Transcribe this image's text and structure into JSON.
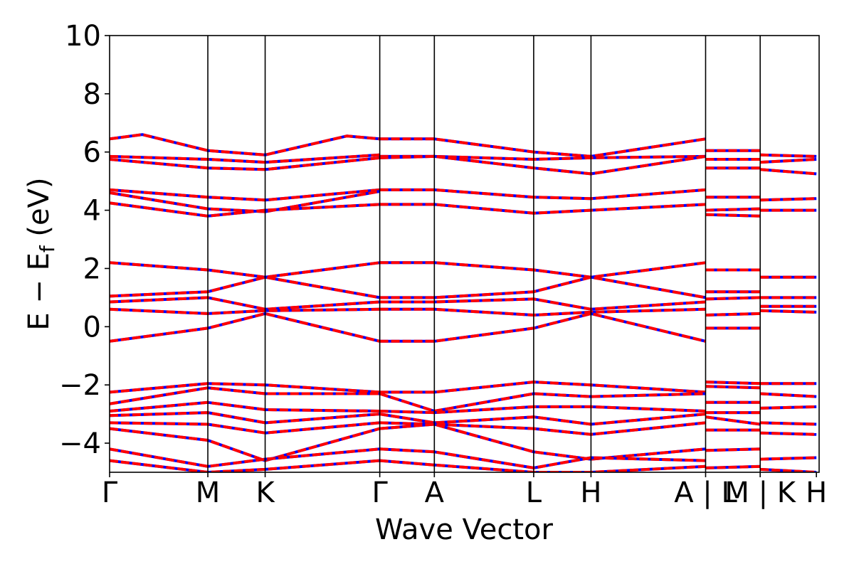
{
  "chart_data": {
    "type": "line",
    "title": "",
    "xlabel": "Wave Vector",
    "ylabel": "E − E",
    "ylabel_subscript": "f",
    "ylabel_unit": " (eV)",
    "ylim": [
      -5,
      10
    ],
    "yticks": [
      -4,
      -2,
      0,
      2,
      4,
      6,
      8,
      10
    ],
    "ytick_labels": [
      "−4",
      "−2",
      "0",
      "2",
      "4",
      "6",
      "8",
      "10"
    ],
    "xlim": [
      0,
      13.0
    ],
    "kpath_ticks": [
      {
        "x": 0.0,
        "label": "Γ"
      },
      {
        "x": 1.8,
        "label": "M"
      },
      {
        "x": 2.85,
        "label": "K"
      },
      {
        "x": 4.95,
        "label": "Γ"
      },
      {
        "x": 5.95,
        "label": "A"
      },
      {
        "x": 7.77,
        "label": "L"
      },
      {
        "x": 8.82,
        "label": "H"
      },
      {
        "x": 10.92,
        "label": "A | L"
      },
      {
        "x": 11.92,
        "label": "M | K"
      },
      {
        "x": 12.95,
        "label": "H"
      }
    ],
    "band_colors": {
      "spin_up": "#0000ff",
      "spin_down": "#ff0000"
    },
    "grid": false,
    "legend": "none",
    "series": [
      {
        "segment": "Γ-M-K-Γ",
        "values": {
          "x": [
            0.0,
            0.6,
            1.8,
            2.85,
            4.35,
            4.95
          ],
          "y": [
            6.45,
            6.6,
            6.05,
            5.9,
            6.55,
            6.45
          ]
        }
      },
      {
        "segment": "Γ-M-K-Γ",
        "values": {
          "x": [
            0.0,
            1.8,
            2.85,
            4.95
          ],
          "y": [
            5.85,
            5.75,
            5.65,
            5.9
          ]
        }
      },
      {
        "segment": "Γ-M-K-Γ",
        "values": {
          "x": [
            0.0,
            1.8,
            2.85,
            4.95
          ],
          "y": [
            5.75,
            5.45,
            5.4,
            5.8
          ]
        }
      },
      {
        "segment": "Γ-M-K-Γ",
        "values": {
          "x": [
            0.0,
            1.8,
            2.85,
            4.95
          ],
          "y": [
            4.7,
            4.45,
            4.35,
            4.7
          ]
        }
      },
      {
        "segment": "Γ-M-K-Γ",
        "values": {
          "x": [
            0.0,
            1.8,
            2.85,
            4.95
          ],
          "y": [
            4.6,
            4.05,
            3.95,
            4.65
          ]
        }
      },
      {
        "segment": "Γ-M-K-Γ",
        "values": {
          "x": [
            0.0,
            1.8,
            2.85,
            4.95
          ],
          "y": [
            4.25,
            3.8,
            4.0,
            4.2
          ]
        }
      },
      {
        "segment": "Γ-M-K-Γ",
        "values": {
          "x": [
            0.0,
            1.8,
            2.85,
            4.95
          ],
          "y": [
            2.2,
            1.95,
            1.7,
            2.2
          ]
        }
      },
      {
        "segment": "Γ-M-K-Γ",
        "values": {
          "x": [
            0.0,
            1.8,
            2.85,
            4.95
          ],
          "y": [
            1.05,
            1.2,
            1.7,
            1.0
          ]
        }
      },
      {
        "segment": "Γ-M-K-Γ",
        "values": {
          "x": [
            0.0,
            1.8,
            2.85,
            4.95
          ],
          "y": [
            0.85,
            1.0,
            0.6,
            0.85
          ]
        }
      },
      {
        "segment": "Γ-M-K-Γ",
        "values": {
          "x": [
            0.0,
            1.8,
            2.85,
            4.95
          ],
          "y": [
            0.6,
            0.45,
            0.55,
            0.6
          ]
        }
      },
      {
        "segment": "Γ-M-K-Γ",
        "values": {
          "x": [
            0.0,
            1.8,
            2.85,
            4.95
          ],
          "y": [
            -0.5,
            -0.05,
            0.45,
            -0.5
          ]
        }
      },
      {
        "segment": "Γ-M-K-Γ",
        "values": {
          "x": [
            0.0,
            1.8,
            2.85,
            4.95
          ],
          "y": [
            -2.25,
            -1.95,
            -2.0,
            -2.25
          ]
        }
      },
      {
        "segment": "Γ-M-K-Γ",
        "values": {
          "x": [
            0.0,
            1.8,
            2.85,
            4.95
          ],
          "y": [
            -2.65,
            -2.1,
            -2.3,
            -2.3
          ]
        }
      },
      {
        "segment": "Γ-M-K-Γ",
        "values": {
          "x": [
            0.0,
            1.8,
            2.85,
            4.95
          ],
          "y": [
            -2.9,
            -2.6,
            -2.85,
            -2.9
          ]
        }
      },
      {
        "segment": "Γ-M-K-Γ",
        "values": {
          "x": [
            0.0,
            1.8,
            2.85,
            4.95
          ],
          "y": [
            -3.05,
            -2.95,
            -3.3,
            -3.0
          ]
        }
      },
      {
        "segment": "Γ-M-K-Γ",
        "values": {
          "x": [
            0.0,
            1.8,
            2.85,
            4.95
          ],
          "y": [
            -3.3,
            -3.35,
            -3.65,
            -3.3
          ]
        }
      },
      {
        "segment": "Γ-M-K-Γ",
        "values": {
          "x": [
            0.0,
            1.8,
            2.85,
            4.95
          ],
          "y": [
            -3.5,
            -3.9,
            -4.6,
            -3.5
          ]
        }
      },
      {
        "segment": "Γ-M-K-Γ",
        "values": {
          "x": [
            0.0,
            1.8,
            2.85,
            4.95
          ],
          "y": [
            -4.2,
            -4.8,
            -4.55,
            -4.2
          ]
        }
      },
      {
        "segment": "Γ-M-K-Γ",
        "values": {
          "x": [
            0.0,
            1.8,
            2.85,
            4.95
          ],
          "y": [
            -4.6,
            -5.0,
            -4.9,
            -4.6
          ]
        }
      },
      {
        "segment": "Γ-A-L-H-A",
        "values": {
          "x": [
            4.95,
            5.95,
            7.77,
            8.82,
            10.92
          ],
          "y": [
            6.45,
            6.45,
            6.0,
            5.85,
            6.45
          ]
        }
      },
      {
        "segment": "Γ-A-L-H-A",
        "values": {
          "x": [
            4.95,
            5.95,
            7.77,
            8.82,
            10.92
          ],
          "y": [
            5.85,
            5.85,
            5.75,
            5.8,
            5.85
          ]
        }
      },
      {
        "segment": "Γ-A-L-H-A",
        "values": {
          "x": [
            4.95,
            5.95,
            7.77,
            8.82,
            10.92
          ],
          "y": [
            5.8,
            5.85,
            5.45,
            5.25,
            5.85
          ]
        }
      },
      {
        "segment": "Γ-A-L-H-A",
        "values": {
          "x": [
            4.95,
            5.95,
            7.77,
            8.82,
            10.92
          ],
          "y": [
            4.7,
            4.7,
            4.45,
            4.4,
            4.7
          ]
        }
      },
      {
        "segment": "Γ-A-L-H-A",
        "values": {
          "x": [
            4.95,
            5.95,
            7.77,
            8.82,
            10.92
          ],
          "y": [
            4.2,
            4.2,
            3.9,
            4.0,
            4.2
          ]
        }
      },
      {
        "segment": "Γ-A-L-H-A",
        "values": {
          "x": [
            4.95,
            5.95,
            7.77,
            8.82,
            10.92
          ],
          "y": [
            2.2,
            2.2,
            1.95,
            1.7,
            2.2
          ]
        }
      },
      {
        "segment": "Γ-A-L-H-A",
        "values": {
          "x": [
            4.95,
            5.95,
            7.77,
            8.82,
            10.92
          ],
          "y": [
            1.0,
            1.0,
            1.2,
            1.7,
            1.0
          ]
        }
      },
      {
        "segment": "Γ-A-L-H-A",
        "values": {
          "x": [
            4.95,
            5.95,
            7.77,
            8.82,
            10.92
          ],
          "y": [
            0.85,
            0.85,
            0.95,
            0.6,
            0.85
          ]
        }
      },
      {
        "segment": "Γ-A-L-H-A",
        "values": {
          "x": [
            4.95,
            5.95,
            7.77,
            8.82,
            10.92
          ],
          "y": [
            0.6,
            0.6,
            0.4,
            0.5,
            0.6
          ]
        }
      },
      {
        "segment": "Γ-A-L-H-A",
        "values": {
          "x": [
            4.95,
            5.95,
            7.77,
            8.82,
            10.92
          ],
          "y": [
            -0.5,
            -0.5,
            -0.05,
            0.45,
            -0.5
          ]
        }
      },
      {
        "segment": "Γ-A-L-H-A",
        "values": {
          "x": [
            4.95,
            5.95,
            7.77,
            8.82,
            10.92
          ],
          "y": [
            -2.25,
            -2.25,
            -1.9,
            -2.0,
            -2.25
          ]
        }
      },
      {
        "segment": "Γ-A-L-H-A",
        "values": {
          "x": [
            4.95,
            5.95,
            7.77,
            8.82,
            10.92
          ],
          "y": [
            -2.3,
            -2.9,
            -2.3,
            -2.4,
            -2.3
          ]
        }
      },
      {
        "segment": "Γ-A-L-H-A",
        "values": {
          "x": [
            4.95,
            5.95,
            7.77,
            8.82,
            10.92
          ],
          "y": [
            -2.9,
            -2.95,
            -2.75,
            -2.75,
            -2.9
          ]
        }
      },
      {
        "segment": "Γ-A-L-H-A",
        "values": {
          "x": [
            4.95,
            5.95,
            7.77,
            8.82,
            10.92
          ],
          "y": [
            -3.0,
            -3.3,
            -3.1,
            -3.35,
            -3.0
          ]
        }
      },
      {
        "segment": "Γ-A-L-H-A",
        "values": {
          "x": [
            4.95,
            5.95,
            7.77,
            8.82,
            10.92
          ],
          "y": [
            -3.3,
            -3.35,
            -3.5,
            -3.7,
            -3.3
          ]
        }
      },
      {
        "segment": "Γ-A-L-H-A",
        "values": {
          "x": [
            4.95,
            5.95,
            7.77,
            8.82,
            10.92
          ],
          "y": [
            -3.5,
            -3.35,
            -4.3,
            -4.55,
            -4.2
          ]
        }
      },
      {
        "segment": "Γ-A-L-H-A",
        "values": {
          "x": [
            4.95,
            5.95,
            7.77,
            8.82,
            10.92
          ],
          "y": [
            -4.2,
            -4.3,
            -4.85,
            -4.5,
            -4.6
          ]
        }
      },
      {
        "segment": "Γ-A-L-H-A",
        "values": {
          "x": [
            4.95,
            5.95,
            7.77,
            8.82,
            10.92
          ],
          "y": [
            -4.6,
            -4.75,
            -5.0,
            -5.0,
            -4.8
          ]
        }
      },
      {
        "segment": "L-M",
        "values": {
          "x": [
            10.92,
            11.92
          ],
          "y": [
            6.05,
            6.05
          ]
        }
      },
      {
        "segment": "L-M",
        "values": {
          "x": [
            10.92,
            11.92
          ],
          "y": [
            5.75,
            5.75
          ]
        }
      },
      {
        "segment": "L-M",
        "values": {
          "x": [
            10.92,
            11.92
          ],
          "y": [
            5.45,
            5.45
          ]
        }
      },
      {
        "segment": "L-M",
        "values": {
          "x": [
            10.92,
            11.92
          ],
          "y": [
            4.45,
            4.45
          ]
        }
      },
      {
        "segment": "L-M",
        "values": {
          "x": [
            10.92,
            11.92
          ],
          "y": [
            4.0,
            4.05
          ]
        }
      },
      {
        "segment": "L-M",
        "values": {
          "x": [
            10.92,
            11.92
          ],
          "y": [
            3.85,
            3.8
          ]
        }
      },
      {
        "segment": "L-M",
        "values": {
          "x": [
            10.92,
            11.92
          ],
          "y": [
            1.95,
            1.95
          ]
        }
      },
      {
        "segment": "L-M",
        "values": {
          "x": [
            10.92,
            11.92
          ],
          "y": [
            1.2,
            1.2
          ]
        }
      },
      {
        "segment": "L-M",
        "values": {
          "x": [
            10.92,
            11.92
          ],
          "y": [
            0.95,
            1.0
          ]
        }
      },
      {
        "segment": "L-M",
        "values": {
          "x": [
            10.92,
            11.92
          ],
          "y": [
            0.4,
            0.45
          ]
        }
      },
      {
        "segment": "L-M",
        "values": {
          "x": [
            10.92,
            11.92
          ],
          "y": [
            -0.05,
            -0.05
          ]
        }
      },
      {
        "segment": "L-M",
        "values": {
          "x": [
            10.92,
            11.92
          ],
          "y": [
            -1.9,
            -1.95
          ]
        }
      },
      {
        "segment": "L-M",
        "values": {
          "x": [
            10.92,
            11.92
          ],
          "y": [
            -2.05,
            -2.1
          ]
        }
      },
      {
        "segment": "L-M",
        "values": {
          "x": [
            10.92,
            11.92
          ],
          "y": [
            -2.6,
            -2.6
          ]
        }
      },
      {
        "segment": "L-M",
        "values": {
          "x": [
            10.92,
            11.92
          ],
          "y": [
            -2.95,
            -2.95
          ]
        }
      },
      {
        "segment": "L-M",
        "values": {
          "x": [
            10.92,
            11.92
          ],
          "y": [
            -3.1,
            -3.35
          ]
        }
      },
      {
        "segment": "L-M",
        "values": {
          "x": [
            10.92,
            11.92
          ],
          "y": [
            -3.55,
            -3.55
          ]
        }
      },
      {
        "segment": "L-M",
        "values": {
          "x": [
            10.92,
            11.92
          ],
          "y": [
            -4.25,
            -4.2
          ]
        }
      },
      {
        "segment": "L-M",
        "values": {
          "x": [
            10.92,
            11.92
          ],
          "y": [
            -4.85,
            -4.8
          ]
        }
      },
      {
        "segment": "K-H",
        "values": {
          "x": [
            11.92,
            12.95
          ],
          "y": [
            5.9,
            5.85
          ]
        }
      },
      {
        "segment": "K-H",
        "values": {
          "x": [
            11.92,
            12.95
          ],
          "y": [
            5.65,
            5.75
          ]
        }
      },
      {
        "segment": "K-H",
        "values": {
          "x": [
            11.92,
            12.95
          ],
          "y": [
            5.4,
            5.25
          ]
        }
      },
      {
        "segment": "K-H",
        "values": {
          "x": [
            11.92,
            12.95
          ],
          "y": [
            4.35,
            4.4
          ]
        }
      },
      {
        "segment": "K-H",
        "values": {
          "x": [
            11.92,
            12.95
          ],
          "y": [
            4.0,
            4.0
          ]
        }
      },
      {
        "segment": "K-H",
        "values": {
          "x": [
            11.92,
            12.95
          ],
          "y": [
            1.7,
            1.7
          ]
        }
      },
      {
        "segment": "K-H",
        "values": {
          "x": [
            11.92,
            12.95
          ],
          "y": [
            1.0,
            1.0
          ]
        }
      },
      {
        "segment": "K-H",
        "values": {
          "x": [
            11.92,
            12.95
          ],
          "y": [
            0.7,
            0.7
          ]
        }
      },
      {
        "segment": "K-H",
        "values": {
          "x": [
            11.92,
            12.95
          ],
          "y": [
            0.55,
            0.5
          ]
        }
      },
      {
        "segment": "K-H",
        "values": {
          "x": [
            11.92,
            12.95
          ],
          "y": [
            -1.95,
            -1.95
          ]
        }
      },
      {
        "segment": "K-H",
        "values": {
          "x": [
            11.92,
            12.95
          ],
          "y": [
            -2.3,
            -2.4
          ]
        }
      },
      {
        "segment": "K-H",
        "values": {
          "x": [
            11.92,
            12.95
          ],
          "y": [
            -2.8,
            -2.75
          ]
        }
      },
      {
        "segment": "K-H",
        "values": {
          "x": [
            11.92,
            12.95
          ],
          "y": [
            -3.3,
            -3.35
          ]
        }
      },
      {
        "segment": "K-H",
        "values": {
          "x": [
            11.92,
            12.95
          ],
          "y": [
            -3.65,
            -3.7
          ]
        }
      },
      {
        "segment": "K-H",
        "values": {
          "x": [
            11.92,
            12.95
          ],
          "y": [
            -4.55,
            -4.5
          ]
        }
      },
      {
        "segment": "K-H",
        "values": {
          "x": [
            11.92,
            12.95
          ],
          "y": [
            -4.9,
            -5.0
          ]
        }
      }
    ]
  }
}
